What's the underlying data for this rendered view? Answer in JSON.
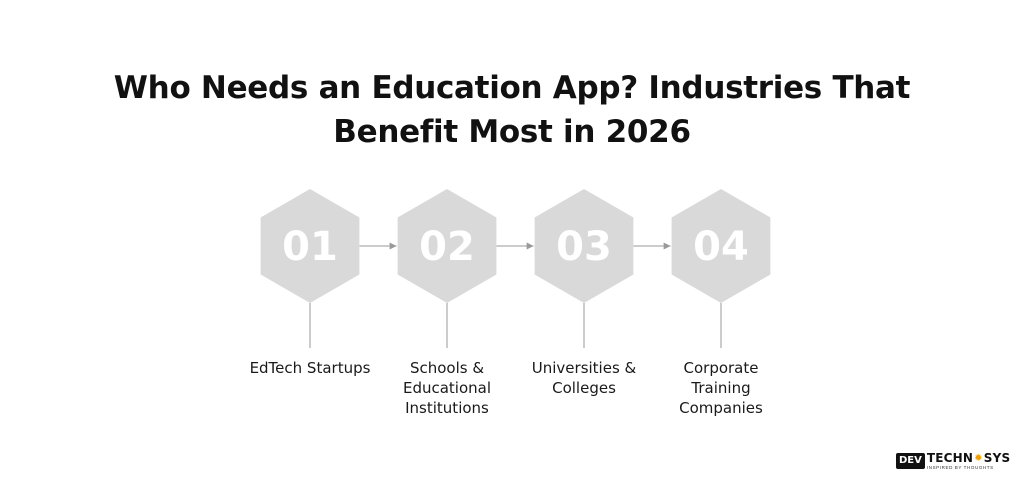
{
  "title": {
    "line1": "Who Needs an Education App? Industries That",
    "line2": "Benefit Most in 2026"
  },
  "steps": [
    {
      "number": "01",
      "label_lines": [
        "EdTech Startups"
      ]
    },
    {
      "number": "02",
      "label_lines": [
        "Schools &",
        "Educational",
        "Institutions"
      ]
    },
    {
      "number": "03",
      "label_lines": [
        "Universities &",
        "Colleges"
      ]
    },
    {
      "number": "04",
      "label_lines": [
        "Corporate",
        "Training",
        "Companies"
      ]
    }
  ],
  "colors": {
    "hexagon": "#d9d9d9",
    "number": "#ffffff",
    "connector": "#9a9a9a",
    "text": "#111111"
  },
  "logo": {
    "box_text": "DEV",
    "main_left": "TECHN",
    "gear_icon": "gear-icon",
    "main_right": "SYS",
    "tagline": "INSPIRED BY THOUGHTS"
  }
}
